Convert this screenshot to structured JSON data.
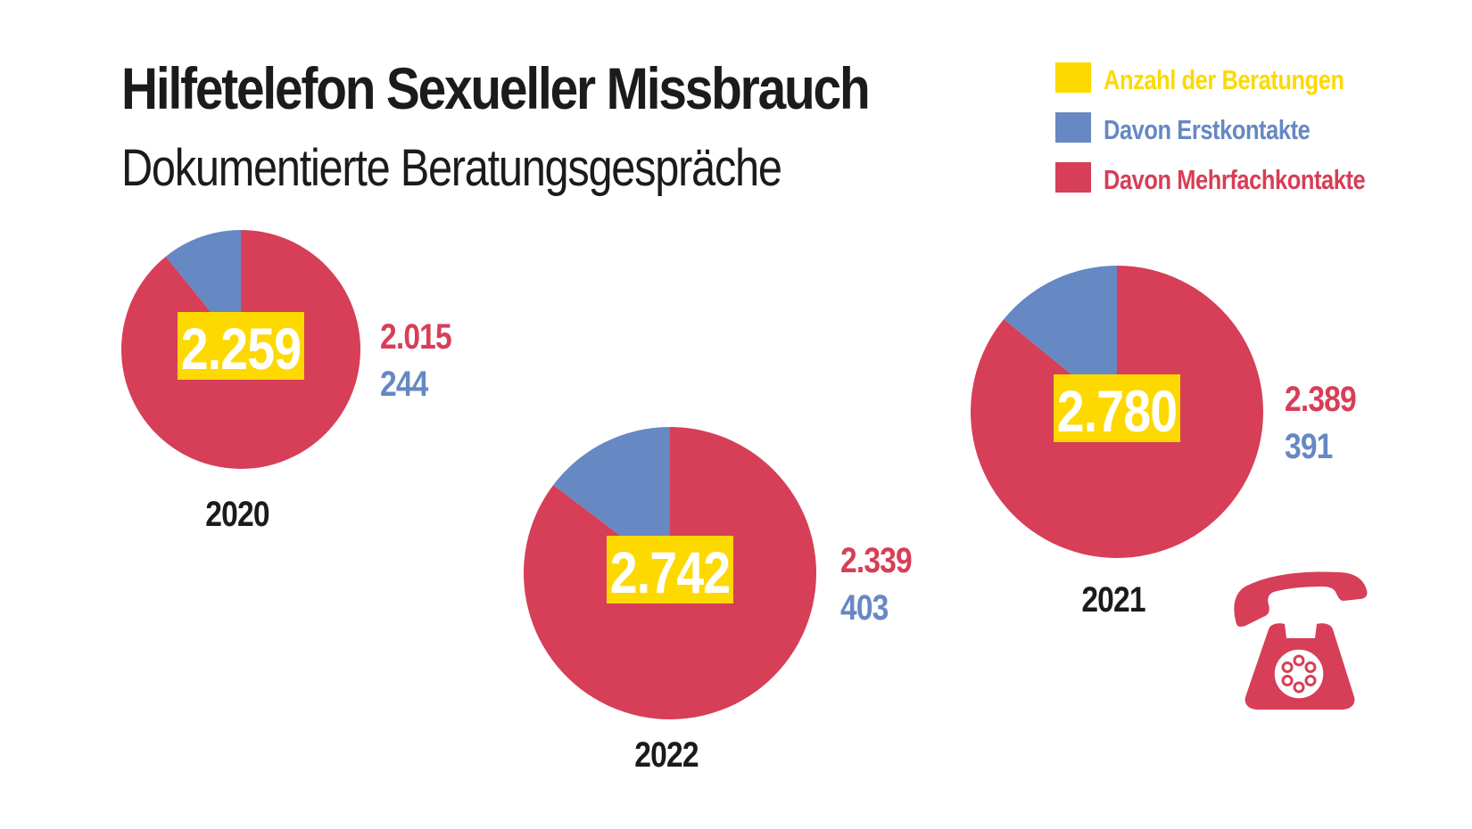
{
  "header": {
    "title": "Hilfetelefon Sexueller Missbrauch",
    "subtitle": "Dokumentierte Beratungsgespräche"
  },
  "colors": {
    "total": "#fdd900",
    "first": "#6688c3",
    "multiple": "#d73e57",
    "text": "#1b1b1b",
    "white": "#ffffff"
  },
  "icons": {
    "phone": "rotary-phone-icon"
  },
  "chart_data": {
    "type": "pie",
    "title": "Hilfetelefon Sexueller Missbrauch",
    "subtitle": "Dokumentierte Beratungsgespräche",
    "legend": {
      "placement": "top-right",
      "entries": [
        {
          "key": "total",
          "label": "Anzahl der Beratungen"
        },
        {
          "key": "first",
          "label": "Davon Erstkontakte"
        },
        {
          "key": "multiple",
          "label": "Davon Mehrfachkontakte"
        }
      ]
    },
    "pies": [
      {
        "year": "2020",
        "total": 2259,
        "total_label": "2.259",
        "multiple": 2015,
        "multiple_label": "2.015",
        "first": 244,
        "first_label": "244"
      },
      {
        "year": "2022",
        "total": 2742,
        "total_label": "2.742",
        "multiple": 2339,
        "multiple_label": "2.339",
        "first": 403,
        "first_label": "403"
      },
      {
        "year": "2021",
        "total": 2780,
        "total_label": "2.780",
        "multiple": 2389,
        "multiple_label": "2.389",
        "first": 391,
        "first_label": "391"
      }
    ]
  }
}
